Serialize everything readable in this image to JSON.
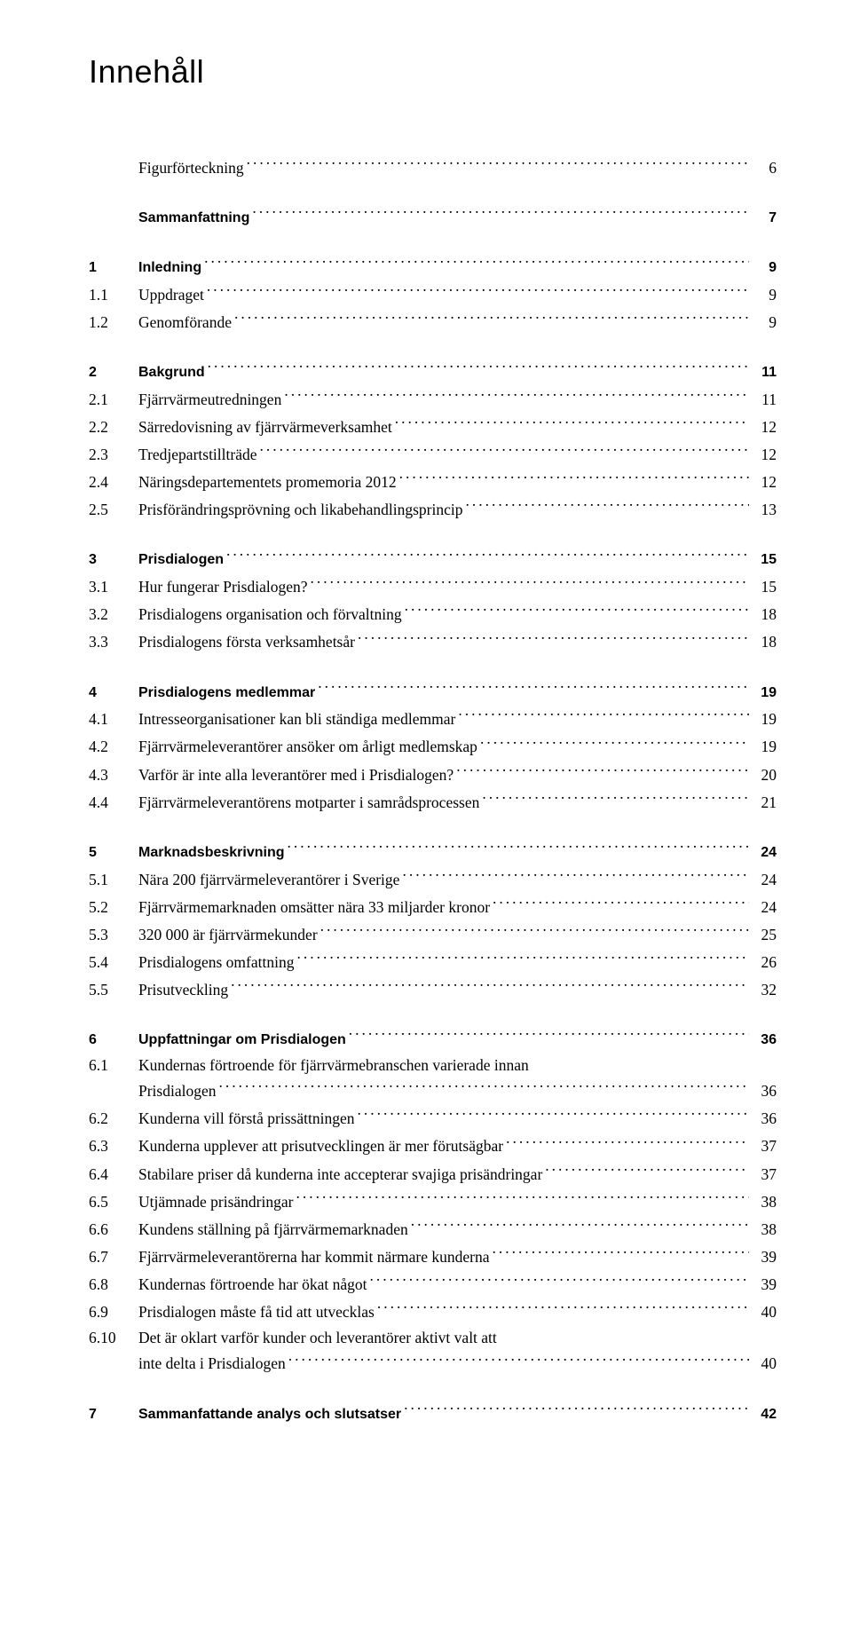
{
  "title": "Innehåll",
  "toc": [
    {
      "type": "gap"
    },
    {
      "num": "",
      "label": "Figurförteckning",
      "page": "6",
      "bold": false
    },
    {
      "type": "gap"
    },
    {
      "num": "",
      "label": "Sammanfattning",
      "page": "7",
      "bold": true
    },
    {
      "type": "gap"
    },
    {
      "num": "1",
      "label": "Inledning",
      "page": "9",
      "bold": true
    },
    {
      "num": "1.1",
      "label": "Uppdraget",
      "page": "9",
      "bold": false
    },
    {
      "num": "1.2",
      "label": "Genomförande",
      "page": "9",
      "bold": false
    },
    {
      "type": "gap"
    },
    {
      "num": "2",
      "label": "Bakgrund",
      "page": "11",
      "bold": true
    },
    {
      "num": "2.1",
      "label": "Fjärrvärmeutredningen",
      "page": "11",
      "bold": false
    },
    {
      "num": "2.2",
      "label": "Särredovisning av fjärrvärmeverksamhet",
      "page": "12",
      "bold": false
    },
    {
      "num": "2.3",
      "label": "Tredjepartstillträde",
      "page": "12",
      "bold": false
    },
    {
      "num": "2.4",
      "label": "Näringsdepartementets promemoria 2012",
      "page": "12",
      "bold": false
    },
    {
      "num": "2.5",
      "label": "Prisförändringsprövning och likabehandlingsprincip",
      "page": "13",
      "bold": false
    },
    {
      "type": "gap"
    },
    {
      "num": "3",
      "label": "Prisdialogen",
      "page": "15",
      "bold": true
    },
    {
      "num": "3.1",
      "label": "Hur fungerar Prisdialogen?",
      "page": "15",
      "bold": false
    },
    {
      "num": "3.2",
      "label": "Prisdialogens organisation och förvaltning",
      "page": "18",
      "bold": false
    },
    {
      "num": "3.3",
      "label": "Prisdialogens första verksamhetsår",
      "page": "18",
      "bold": false
    },
    {
      "type": "gap"
    },
    {
      "num": "4",
      "label": "Prisdialogens medlemmar",
      "page": "19",
      "bold": true
    },
    {
      "num": "4.1",
      "label": "Intresseorganisationer kan bli ständiga medlemmar",
      "page": "19",
      "bold": false
    },
    {
      "num": "4.2",
      "label": "Fjärrvärmeleverantörer ansöker om årligt medlemskap",
      "page": "19",
      "bold": false
    },
    {
      "num": "4.3",
      "label": "Varför är inte alla leverantörer med i Prisdialogen?",
      "page": "20",
      "bold": false
    },
    {
      "num": "4.4",
      "label": "Fjärrvärmeleverantörens motparter i samrådsprocessen",
      "page": "21",
      "bold": false
    },
    {
      "type": "gap"
    },
    {
      "num": "5",
      "label": "Marknadsbeskrivning",
      "page": "24",
      "bold": true
    },
    {
      "num": "5.1",
      "label": "Nära 200 fjärrvärmeleverantörer i Sverige",
      "page": "24",
      "bold": false
    },
    {
      "num": "5.2",
      "label": "Fjärrvärmemarknaden omsätter nära 33 miljarder kronor",
      "page": "24",
      "bold": false
    },
    {
      "num": "5.3",
      "label": "320 000 är fjärrvärmekunder",
      "page": "25",
      "bold": false
    },
    {
      "num": "5.4",
      "label": "Prisdialogens omfattning",
      "page": "26",
      "bold": false
    },
    {
      "num": "5.5",
      "label": "Prisutveckling",
      "page": "32",
      "bold": false
    },
    {
      "type": "gap"
    },
    {
      "num": "6",
      "label": "Uppfattningar om Prisdialogen",
      "page": "36",
      "bold": true
    },
    {
      "num": "6.1",
      "label": "Kundernas förtroende för fjärrvärmebranschen varierade innan Prisdialogen",
      "page": "36",
      "bold": false,
      "multi": true
    },
    {
      "num": "6.2",
      "label": "Kunderna vill förstå prissättningen",
      "page": "36",
      "bold": false
    },
    {
      "num": "6.3",
      "label": "Kunderna upplever att prisutvecklingen är mer förutsägbar",
      "page": "37",
      "bold": false
    },
    {
      "num": "6.4",
      "label": "Stabilare priser då kunderna inte accepterar svajiga prisändringar",
      "page": "37",
      "bold": false
    },
    {
      "num": "6.5",
      "label": "Utjämnade prisändringar",
      "page": "38",
      "bold": false
    },
    {
      "num": "6.6",
      "label": "Kundens ställning på fjärrvärmemarknaden",
      "page": "38",
      "bold": false
    },
    {
      "num": "6.7",
      "label": "Fjärrvärmeleverantörerna har kommit närmare kunderna",
      "page": "39",
      "bold": false
    },
    {
      "num": "6.8",
      "label": "Kundernas förtroende har ökat något",
      "page": "39",
      "bold": false
    },
    {
      "num": "6.9",
      "label": "Prisdialogen måste få tid att utvecklas",
      "page": "40",
      "bold": false
    },
    {
      "num": "6.10",
      "label": "Det är oklart varför kunder och leverantörer aktivt valt att inte delta i Prisdialogen",
      "page": "40",
      "bold": false,
      "multi": true
    },
    {
      "type": "gap"
    },
    {
      "num": "7",
      "label": "Sammanfattande analys och slutsatser",
      "page": "42",
      "bold": true
    }
  ]
}
